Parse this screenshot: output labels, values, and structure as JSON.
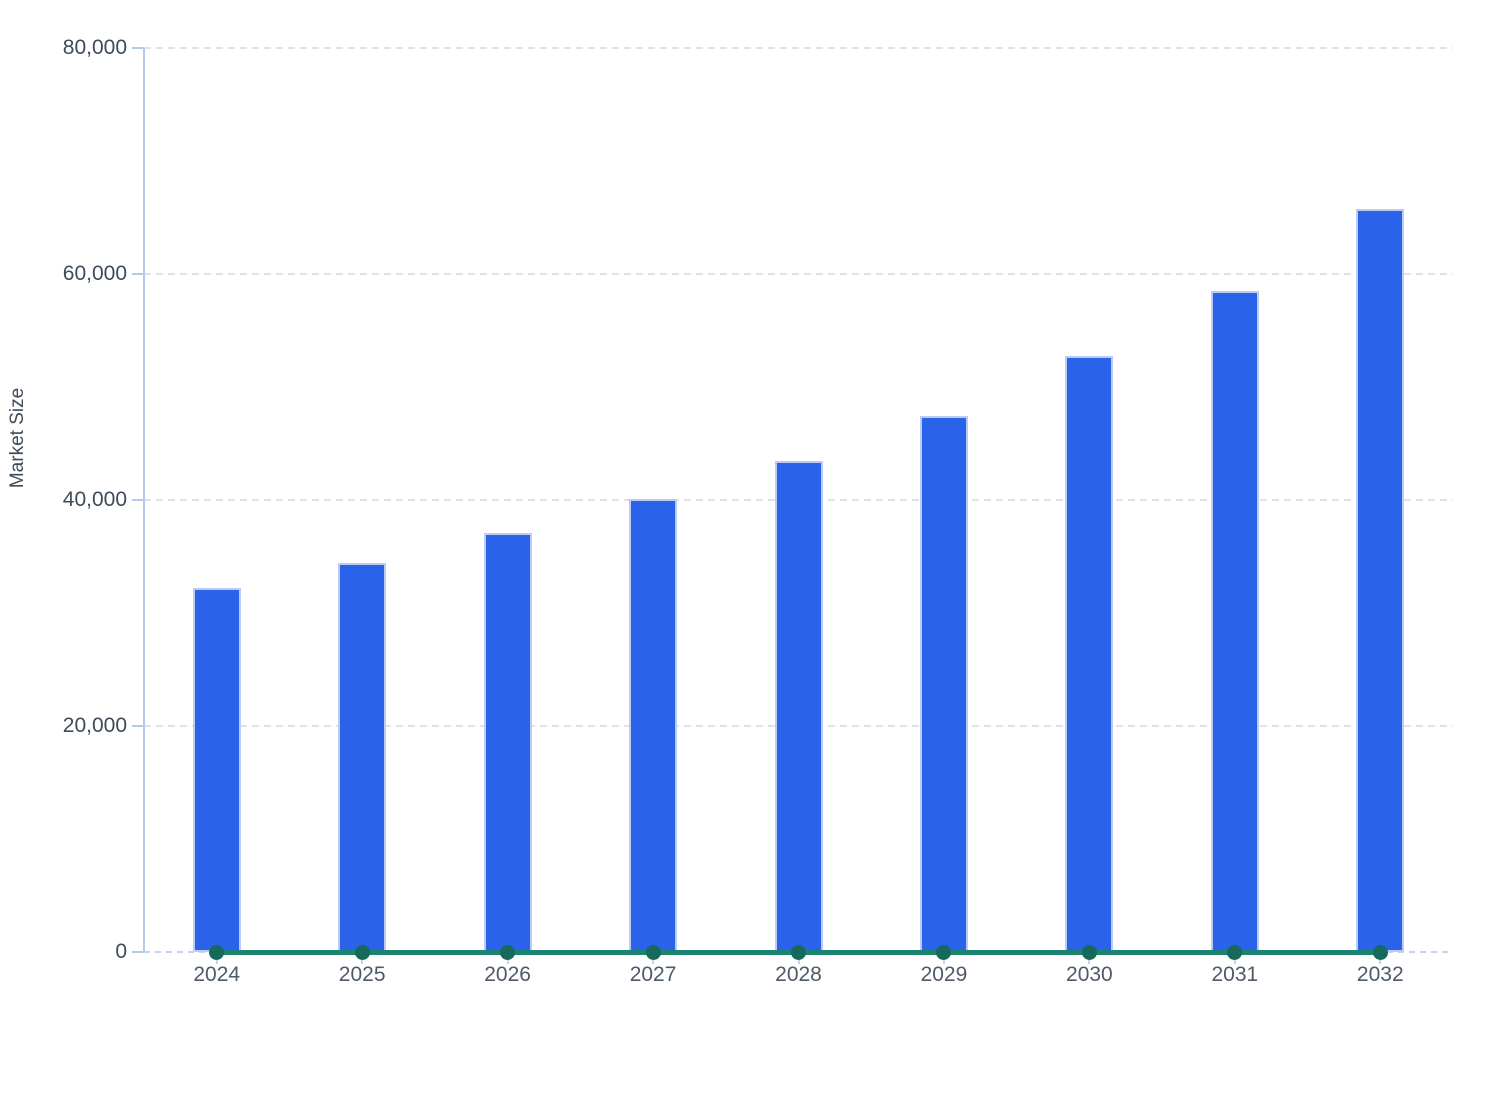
{
  "chart_data": {
    "type": "bar",
    "title": "",
    "xlabel": "",
    "ylabel": "Market Size",
    "categories": [
      "2024",
      "2025",
      "2026",
      "2027",
      "2028",
      "2029",
      "2030",
      "2031",
      "2032"
    ],
    "series": [
      {
        "name": "Market Size",
        "type": "bar",
        "color": "#2a63e9",
        "values": [
          32200,
          34400,
          37100,
          40100,
          43400,
          47400,
          52700,
          58500,
          65700
        ]
      },
      {
        "name": "zero-baseline",
        "type": "line",
        "color": "#1c8271",
        "marker_color": "#176a5b",
        "values": [
          0,
          0,
          0,
          0,
          0,
          0,
          0,
          0,
          0
        ]
      }
    ],
    "ylim": [
      0,
      80000
    ],
    "yticks": [
      0,
      20000,
      40000,
      60000,
      80000
    ],
    "ytick_labels": [
      "0",
      "20,000",
      "40,000",
      "60,000",
      "80,000"
    ],
    "grid": "horizontal-dashed",
    "legend": "none",
    "colors": {
      "bar_fill": "#2a63e9",
      "bar_border": "#bccbf4",
      "axis": "#b7c8ef",
      "gridline": "#e1e2e4",
      "y_tick_label": "#3f4b5a",
      "x_tick_label": "#4e5a69",
      "zero_line": "#1c8271",
      "zero_marker": "#176a5b",
      "background": "#ffffff"
    }
  }
}
